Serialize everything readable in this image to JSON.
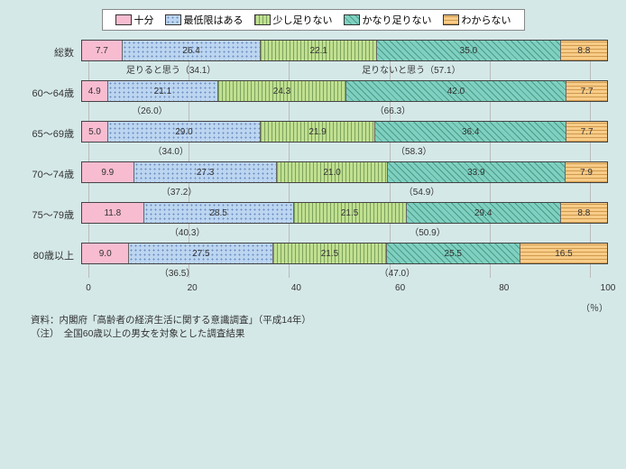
{
  "type": "stacked-horizontal-bar",
  "background_color": "#d5e8e8",
  "legend": [
    {
      "label": "十分",
      "color": "#f8bcd0",
      "pattern": "solid"
    },
    {
      "label": "最低限はある",
      "color": "#bcd5f0",
      "pattern": "dots"
    },
    {
      "label": "少し足りない",
      "color": "#c0e090",
      "pattern": "vlines"
    },
    {
      "label": "かなり足りない",
      "color": "#7fd0c0",
      "pattern": "diag"
    },
    {
      "label": "わからない",
      "color": "#f8cc88",
      "pattern": "hlines"
    }
  ],
  "row_labels": [
    "総数",
    "60～64歳",
    "65～69歳",
    "70～74歳",
    "75～79歳",
    "80歳以上"
  ],
  "series": [
    [
      7.7,
      26.4,
      22.1,
      35.0,
      8.8
    ],
    [
      4.9,
      21.1,
      24.3,
      42.0,
      7.7
    ],
    [
      5.0,
      29.0,
      21.9,
      36.4,
      7.7
    ],
    [
      9.9,
      27.3,
      21.0,
      33.9,
      7.9
    ],
    [
      11.8,
      28.5,
      21.5,
      29.4,
      8.8
    ],
    [
      9.0,
      27.5,
      21.5,
      25.5,
      16.5
    ]
  ],
  "bracket_labels_first": [
    "足りると思う（34.1）",
    "足りないと思う（57.1）"
  ],
  "subtotals": [
    [
      34.1,
      57.1
    ],
    [
      26.0,
      66.3
    ],
    [
      34.0,
      58.3
    ],
    [
      37.2,
      54.9
    ],
    [
      40.3,
      50.9
    ],
    [
      36.5,
      47.0
    ]
  ],
  "xaxis": {
    "min": 0,
    "max": 100,
    "ticks": [
      0,
      20,
      40,
      60,
      80,
      100
    ],
    "label": "（％）"
  },
  "footer_lines": [
    "資料：内閣府「高齢者の経済生活に関する意識調査」（平成14年）",
    "（注）　全国60歳以上の男女を対象とした調査結果"
  ],
  "fontsize": {
    "legend": 11,
    "row_label": 11,
    "seg": 10,
    "sub": 10,
    "tick": 10,
    "footer": 10.5
  }
}
